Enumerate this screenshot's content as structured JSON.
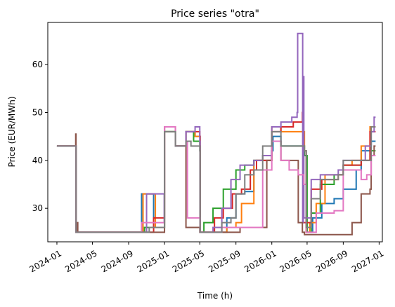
{
  "chart_data": {
    "type": "line",
    "step": true,
    "title": "Price series \"otra\"",
    "xlabel": "Time (h)",
    "ylabel": "Price (EUR/MWh)",
    "xlim": [
      "2023-12-01",
      "2027-01-12"
    ],
    "ylim": [
      23.0,
      68.8
    ],
    "grid": false,
    "legend": "none",
    "x_ticks": [
      "2024-01",
      "2024-05",
      "2024-09",
      "2025-01",
      "2025-05",
      "2025-09",
      "2026-01",
      "2026-05",
      "2026-09",
      "2027-01"
    ],
    "y_ticks": [
      30,
      40,
      50,
      60
    ],
    "series": [
      {
        "color": "#1f77b4",
        "points": [
          [
            "2024-01-01",
            43
          ],
          [
            "2024-03-05",
            43
          ],
          [
            "2024-03-06",
            25
          ],
          [
            "2024-10-10",
            25
          ],
          [
            "2024-10-15",
            33
          ],
          [
            "2024-11-20",
            33
          ],
          [
            "2024-11-25",
            26
          ],
          [
            "2024-12-31",
            26
          ],
          [
            "2025-01-01",
            46
          ],
          [
            "2025-02-05",
            46
          ],
          [
            "2025-02-07",
            43
          ],
          [
            "2025-03-10",
            43
          ],
          [
            "2025-03-15",
            46
          ],
          [
            "2025-04-10",
            46
          ],
          [
            "2025-04-15",
            45
          ],
          [
            "2025-05-01",
            45
          ],
          [
            "2025-05-02",
            25
          ],
          [
            "2025-07-01",
            25
          ],
          [
            "2025-08-01",
            28
          ],
          [
            "2025-09-01",
            33
          ],
          [
            "2025-10-01",
            33.5
          ],
          [
            "2025-11-01",
            40
          ],
          [
            "2025-12-01",
            40
          ],
          [
            "2025-12-31",
            42
          ],
          [
            "2026-01-05",
            45
          ],
          [
            "2026-02-01",
            43
          ],
          [
            "2026-03-01",
            43
          ],
          [
            "2026-04-20",
            42
          ],
          [
            "2026-04-28",
            25
          ],
          [
            "2026-05-20",
            28
          ],
          [
            "2026-06-20",
            31
          ],
          [
            "2026-08-01",
            32
          ],
          [
            "2026-09-01",
            34
          ],
          [
            "2026-10-15",
            38
          ],
          [
            "2026-11-01",
            42
          ],
          [
            "2026-12-05",
            44
          ],
          [
            "2026-12-20",
            44
          ]
        ]
      },
      {
        "color": "#ff7f0e",
        "points": [
          [
            "2024-01-01",
            43
          ],
          [
            "2024-03-05",
            43
          ],
          [
            "2024-03-06",
            25
          ],
          [
            "2024-10-15",
            25
          ],
          [
            "2024-10-20",
            33
          ],
          [
            "2024-11-25",
            33
          ],
          [
            "2024-12-01",
            26
          ],
          [
            "2024-12-31",
            26
          ],
          [
            "2025-01-01",
            46
          ],
          [
            "2025-02-05",
            46
          ],
          [
            "2025-02-07",
            43
          ],
          [
            "2025-03-10",
            43
          ],
          [
            "2025-03-15",
            46
          ],
          [
            "2025-04-10",
            46
          ],
          [
            "2025-04-15",
            45
          ],
          [
            "2025-05-01",
            45
          ],
          [
            "2025-05-02",
            25
          ],
          [
            "2025-07-01",
            25
          ],
          [
            "2025-08-01",
            26
          ],
          [
            "2025-09-01",
            27
          ],
          [
            "2025-09-20",
            31
          ],
          [
            "2025-11-01",
            40
          ],
          [
            "2025-12-01",
            40
          ],
          [
            "2026-01-01",
            47
          ],
          [
            "2026-02-01",
            46
          ],
          [
            "2026-04-01",
            46
          ],
          [
            "2026-04-22",
            42
          ],
          [
            "2026-04-28",
            25
          ],
          [
            "2026-05-10",
            27
          ],
          [
            "2026-06-01",
            31
          ],
          [
            "2026-07-01",
            37
          ],
          [
            "2026-09-01",
            39
          ],
          [
            "2026-10-01",
            40
          ],
          [
            "2026-11-01",
            43
          ],
          [
            "2026-12-01",
            47
          ],
          [
            "2026-12-20",
            47
          ]
        ]
      },
      {
        "color": "#2ca02c",
        "points": [
          [
            "2024-01-01",
            43
          ],
          [
            "2024-03-05",
            43
          ],
          [
            "2024-03-06",
            25
          ],
          [
            "2024-10-10",
            25
          ],
          [
            "2024-10-25",
            26
          ],
          [
            "2024-12-31",
            26
          ],
          [
            "2025-01-01",
            46
          ],
          [
            "2025-02-05",
            46
          ],
          [
            "2025-02-07",
            43
          ],
          [
            "2025-03-10",
            43
          ],
          [
            "2025-03-15",
            46
          ],
          [
            "2025-04-10",
            44
          ],
          [
            "2025-05-01",
            43
          ],
          [
            "2025-05-02",
            25
          ],
          [
            "2025-05-15",
            27
          ],
          [
            "2025-06-15",
            30
          ],
          [
            "2025-07-20",
            34
          ],
          [
            "2025-09-01",
            38
          ],
          [
            "2025-10-01",
            39
          ],
          [
            "2025-11-01",
            40
          ],
          [
            "2025-12-01",
            41
          ],
          [
            "2026-01-01",
            44
          ],
          [
            "2026-02-01",
            43
          ],
          [
            "2026-04-01",
            43
          ],
          [
            "2026-04-22",
            41
          ],
          [
            "2026-05-01",
            25
          ],
          [
            "2026-05-15",
            29
          ],
          [
            "2026-06-15",
            35
          ],
          [
            "2026-08-01",
            37
          ],
          [
            "2026-09-01",
            39
          ],
          [
            "2026-11-01",
            40
          ],
          [
            "2026-12-01",
            42
          ],
          [
            "2026-12-20",
            42
          ]
        ]
      },
      {
        "color": "#d62728",
        "points": [
          [
            "2024-01-01",
            43
          ],
          [
            "2024-03-05",
            43
          ],
          [
            "2024-03-06",
            25
          ],
          [
            "2024-11-01",
            25
          ],
          [
            "2024-11-25",
            28
          ],
          [
            "2024-12-31",
            28
          ],
          [
            "2025-01-01",
            47
          ],
          [
            "2025-02-05",
            47
          ],
          [
            "2025-02-07",
            43
          ],
          [
            "2025-03-10",
            43
          ],
          [
            "2025-03-15",
            46
          ],
          [
            "2025-04-15",
            46
          ],
          [
            "2025-05-01",
            45
          ],
          [
            "2025-05-02",
            25
          ],
          [
            "2025-06-01",
            25
          ],
          [
            "2025-06-20",
            28
          ],
          [
            "2025-07-20",
            30
          ],
          [
            "2025-08-20",
            33
          ],
          [
            "2025-09-20",
            34
          ],
          [
            "2025-10-20",
            38
          ],
          [
            "2025-11-10",
            40
          ],
          [
            "2025-12-10",
            40
          ],
          [
            "2026-01-01",
            46
          ],
          [
            "2026-02-01",
            47
          ],
          [
            "2026-03-15",
            48
          ],
          [
            "2026-04-15",
            50
          ],
          [
            "2026-04-17",
            27
          ],
          [
            "2026-05-15",
            34
          ],
          [
            "2026-06-20",
            36
          ],
          [
            "2026-08-15",
            37
          ],
          [
            "2026-09-01",
            39
          ],
          [
            "2026-11-01",
            40
          ],
          [
            "2026-12-01",
            46
          ],
          [
            "2026-12-20",
            46
          ]
        ]
      },
      {
        "color": "#9467bd",
        "points": [
          [
            "2024-01-01",
            43
          ],
          [
            "2024-03-05",
            43
          ],
          [
            "2024-03-06",
            25
          ],
          [
            "2024-10-20",
            25
          ],
          [
            "2024-11-01",
            33
          ],
          [
            "2024-12-15",
            33
          ],
          [
            "2024-12-31",
            27
          ],
          [
            "2025-01-01",
            47
          ],
          [
            "2025-02-05",
            47
          ],
          [
            "2025-02-07",
            43
          ],
          [
            "2025-03-10",
            43
          ],
          [
            "2025-03-15",
            46
          ],
          [
            "2025-04-15",
            47
          ],
          [
            "2025-05-01",
            44
          ],
          [
            "2025-05-02",
            25
          ],
          [
            "2025-06-01",
            25
          ],
          [
            "2025-06-15",
            26
          ],
          [
            "2025-07-15",
            30
          ],
          [
            "2025-08-15",
            36
          ],
          [
            "2025-09-15",
            39
          ],
          [
            "2025-11-01",
            40
          ],
          [
            "2025-12-01",
            41
          ],
          [
            "2026-01-01",
            47
          ],
          [
            "2026-02-01",
            48
          ],
          [
            "2026-03-10",
            49
          ],
          [
            "2026-03-28",
            50
          ],
          [
            "2026-03-30",
            66.5
          ],
          [
            "2026-04-14",
            66.5
          ],
          [
            "2026-04-16",
            27
          ],
          [
            "2026-04-18",
            57.5
          ],
          [
            "2026-04-20",
            28
          ],
          [
            "2026-05-15",
            36
          ],
          [
            "2026-06-15",
            37
          ],
          [
            "2026-08-15",
            38
          ],
          [
            "2026-09-01",
            40
          ],
          [
            "2026-10-15",
            40
          ],
          [
            "2026-11-15",
            43
          ],
          [
            "2026-12-05",
            46
          ],
          [
            "2026-12-15",
            49
          ],
          [
            "2026-12-20",
            49
          ]
        ]
      },
      {
        "color": "#8c564b",
        "points": [
          [
            "2024-01-01",
            43
          ],
          [
            "2024-03-01",
            43
          ],
          [
            "2024-03-05",
            45.5
          ],
          [
            "2024-03-06",
            25
          ],
          [
            "2024-03-10",
            27
          ],
          [
            "2024-03-12",
            25
          ],
          [
            "2024-12-31",
            25
          ],
          [
            "2025-01-01",
            47
          ],
          [
            "2025-02-05",
            47
          ],
          [
            "2025-02-07",
            43
          ],
          [
            "2025-03-10",
            43
          ],
          [
            "2025-03-15",
            26
          ],
          [
            "2025-04-20",
            26
          ],
          [
            "2025-05-01",
            25
          ],
          [
            "2025-09-01",
            25
          ],
          [
            "2025-09-15",
            26
          ],
          [
            "2025-11-20",
            26
          ],
          [
            "2025-12-15",
            40
          ],
          [
            "2026-01-01",
            44
          ],
          [
            "2026-02-01",
            40
          ],
          [
            "2026-03-15",
            40
          ],
          [
            "2026-04-01",
            27
          ],
          [
            "2026-04-15",
            25
          ],
          [
            "2026-04-22",
            24.5
          ],
          [
            "2026-09-01",
            24.5
          ],
          [
            "2026-10-01",
            27
          ],
          [
            "2026-11-01",
            33
          ],
          [
            "2026-12-01",
            34
          ],
          [
            "2026-12-05",
            41
          ],
          [
            "2026-12-15",
            43
          ],
          [
            "2026-12-20",
            43
          ]
        ]
      },
      {
        "color": "#e377c2",
        "points": [
          [
            "2024-01-01",
            43
          ],
          [
            "2024-03-05",
            43
          ],
          [
            "2024-03-06",
            25
          ],
          [
            "2024-10-10",
            25
          ],
          [
            "2024-10-15",
            27
          ],
          [
            "2024-12-31",
            27
          ],
          [
            "2025-01-01",
            47
          ],
          [
            "2025-02-05",
            47
          ],
          [
            "2025-02-07",
            43
          ],
          [
            "2025-03-10",
            43
          ],
          [
            "2025-03-15",
            44
          ],
          [
            "2025-03-20",
            28
          ],
          [
            "2025-05-01",
            28
          ],
          [
            "2025-05-02",
            25
          ],
          [
            "2025-07-01",
            25
          ],
          [
            "2025-07-15",
            26
          ],
          [
            "2025-11-01",
            26
          ],
          [
            "2025-12-01",
            38
          ],
          [
            "2026-01-01",
            44
          ],
          [
            "2026-02-01",
            40
          ],
          [
            "2026-03-01",
            38
          ],
          [
            "2026-04-01",
            37
          ],
          [
            "2026-04-20",
            35
          ],
          [
            "2026-04-28",
            25
          ],
          [
            "2026-06-01",
            29
          ],
          [
            "2026-07-01",
            29
          ],
          [
            "2026-08-01",
            29.5
          ],
          [
            "2026-09-01",
            38
          ],
          [
            "2026-10-15",
            38
          ],
          [
            "2026-11-01",
            36
          ],
          [
            "2026-11-20",
            37
          ],
          [
            "2026-12-05",
            41
          ],
          [
            "2026-12-20",
            41
          ]
        ]
      },
      {
        "color": "#7f7f7f",
        "points": [
          [
            "2024-01-01",
            43
          ],
          [
            "2024-03-05",
            43
          ],
          [
            "2024-03-06",
            25
          ],
          [
            "2024-11-01",
            25
          ],
          [
            "2024-11-10",
            26
          ],
          [
            "2024-12-31",
            26
          ],
          [
            "2025-01-01",
            46
          ],
          [
            "2025-02-05",
            46
          ],
          [
            "2025-02-07",
            43
          ],
          [
            "2025-03-10",
            43
          ],
          [
            "2025-03-15",
            44
          ],
          [
            "2025-04-01",
            43
          ],
          [
            "2025-05-01",
            42
          ],
          [
            "2025-05-02",
            25
          ],
          [
            "2025-06-15",
            25
          ],
          [
            "2025-07-15",
            27
          ],
          [
            "2025-08-15",
            28
          ],
          [
            "2025-09-01",
            33
          ],
          [
            "2025-10-01",
            37
          ],
          [
            "2025-11-01",
            38
          ],
          [
            "2025-12-01",
            43
          ],
          [
            "2026-01-01",
            46
          ],
          [
            "2026-02-01",
            43
          ],
          [
            "2026-04-01",
            43
          ],
          [
            "2026-04-22",
            42
          ],
          [
            "2026-04-28",
            26
          ],
          [
            "2026-05-15",
            32
          ],
          [
            "2026-06-15",
            36
          ],
          [
            "2026-08-15",
            37
          ],
          [
            "2026-09-01",
            40
          ],
          [
            "2026-11-01",
            40
          ],
          [
            "2026-12-05",
            47
          ],
          [
            "2026-12-20",
            47
          ]
        ]
      }
    ]
  }
}
